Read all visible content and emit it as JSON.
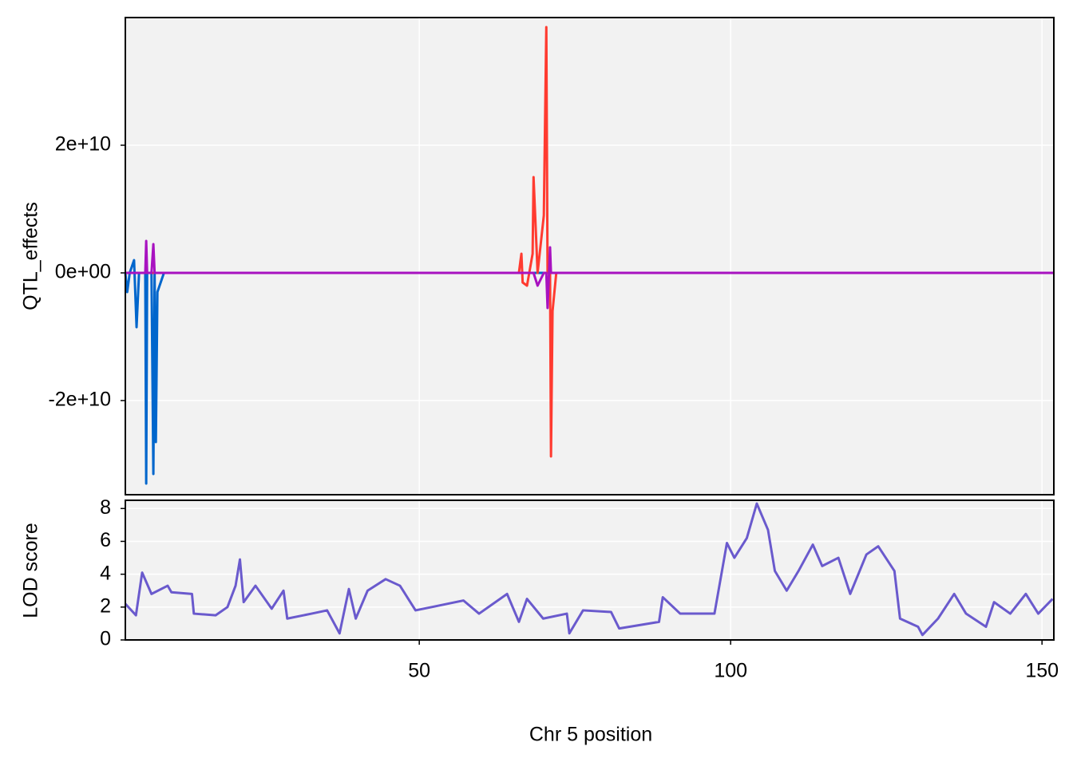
{
  "chart_data": [
    {
      "type": "line",
      "ylabel": "QTL_effects",
      "x": [
        2.8,
        3.1,
        3.5,
        4.2,
        4.6,
        5.0,
        6.0,
        6.15,
        6.3,
        7.0,
        7.3,
        7.5,
        7.7,
        7.95,
        9.0,
        66.0,
        66.4,
        66.6,
        67.3,
        68.2,
        68.35,
        69.0,
        70.0,
        70.4,
        70.6,
        71.0,
        71.15,
        71.4,
        72.0,
        151.9
      ],
      "series": [
        {
          "color": "#0066cc",
          "values": [
            0,
            -3000000000,
            0,
            2000000000,
            -8500000000,
            0,
            0,
            -33000000000,
            0,
            0,
            -31500000000,
            0,
            -26500000000,
            -3000000000,
            0,
            0,
            0,
            0,
            0,
            0,
            0,
            0,
            0,
            0,
            0,
            0,
            0,
            0,
            0,
            0
          ]
        },
        {
          "color": "#ff3b30",
          "values": [
            0,
            0,
            0,
            0,
            0,
            0,
            0,
            0,
            0,
            0,
            0,
            0,
            0,
            0,
            0,
            0,
            3000000000,
            -1500000000,
            -2000000000,
            3000000000,
            15000000000,
            0,
            9000000000,
            38500000000,
            0,
            0,
            -28750000000,
            -6000000000,
            0,
            0
          ]
        },
        {
          "color": "#a812c0",
          "values": [
            0,
            0,
            0,
            0,
            0,
            0,
            0,
            5000000000,
            0,
            0,
            4500000000,
            0,
            0,
            0,
            0,
            0,
            0,
            0,
            0,
            0,
            0,
            -2000000000,
            0,
            0,
            -5500000000,
            4000000000,
            0,
            0,
            0,
            0
          ]
        }
      ],
      "xlim": [
        2.8,
        151.9
      ],
      "ylim": [
        -34750000000,
        40000000000
      ],
      "xticks": [
        50,
        100,
        150
      ],
      "yticks": [
        {
          "value": -20000000000,
          "label": "-2e+10"
        },
        {
          "value": 0,
          "label": "0e+00"
        },
        {
          "value": 20000000000,
          "label": "2e+10"
        }
      ],
      "grid": true
    },
    {
      "type": "line",
      "xlabel": "Chr 5 position",
      "ylabel": "LOD score",
      "x": [
        2.8,
        4.5,
        5.5,
        7.0,
        9.6,
        10.2,
        13.5,
        13.8,
        17.3,
        19.2,
        20.5,
        21.2,
        21.8,
        23.7,
        26.3,
        28.2,
        28.8,
        32.7,
        35.2,
        37.2,
        38.7,
        39.8,
        41.7,
        44.6,
        46.9,
        49.4,
        52.0,
        57.1,
        59.6,
        64.1,
        66.0,
        67.3,
        69.9,
        73.7,
        74.1,
        76.3,
        80.8,
        82.1,
        88.5,
        89.1,
        91.9,
        97.4,
        99.4,
        100.6,
        102.6,
        104.2,
        106.0,
        107.1,
        109.0,
        110.9,
        113.2,
        114.7,
        117.3,
        119.2,
        121.8,
        123.7,
        126.3,
        127.2,
        130.1,
        130.8,
        133.3,
        135.9,
        137.8,
        141.0,
        142.3,
        144.9,
        147.4,
        149.4,
        151.7
      ],
      "series": [
        {
          "color": "#6a5acd",
          "values": [
            2.2,
            1.5,
            4.1,
            2.8,
            3.3,
            2.9,
            2.8,
            1.6,
            1.5,
            2.0,
            3.3,
            4.9,
            2.3,
            3.3,
            1.9,
            3.0,
            1.3,
            1.6,
            1.8,
            0.4,
            3.1,
            1.3,
            3.0,
            3.7,
            3.3,
            1.8,
            2.0,
            2.4,
            1.6,
            2.8,
            1.1,
            2.5,
            1.3,
            1.6,
            0.4,
            1.8,
            1.7,
            0.7,
            1.1,
            2.6,
            1.6,
            1.6,
            5.9,
            5.0,
            6.2,
            8.3,
            6.7,
            4.2,
            3.0,
            4.2,
            5.8,
            4.5,
            5.0,
            2.8,
            5.2,
            5.7,
            4.2,
            1.3,
            0.8,
            0.3,
            1.3,
            2.8,
            1.6,
            0.8,
            2.3,
            1.6,
            2.8,
            1.6,
            2.5
          ]
        }
      ],
      "xlim": [
        2.8,
        151.9
      ],
      "ylim": [
        0,
        8.5
      ],
      "xticks": [
        50,
        100,
        150
      ],
      "yticks": [
        0,
        2,
        4,
        6,
        8
      ],
      "grid": true
    }
  ]
}
